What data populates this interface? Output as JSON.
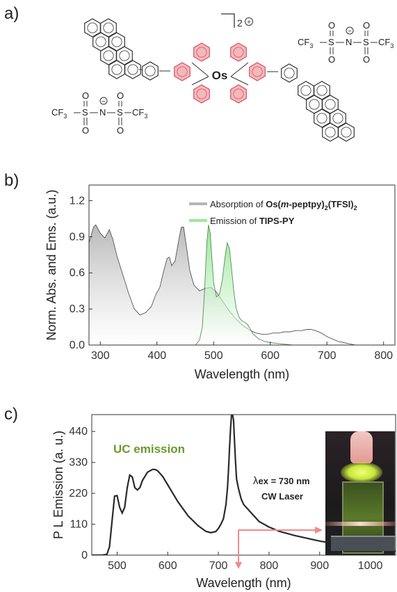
{
  "panels": {
    "a": "a)",
    "b": "b)",
    "c": "c)"
  },
  "structure": {
    "charge": "2",
    "charge_symbol": "+",
    "metal": "Os",
    "anion_left": {
      "cf3_left_main": "CF",
      "cf3_left_sub": "3",
      "s1": "S",
      "n": "N",
      "s2": "S",
      "cf3_right_main": "CF",
      "cf3_right_sub": "3",
      "minus": "−"
    },
    "anion_right": {
      "cf3_left_main": "CF",
      "cf3_left_sub": "3",
      "s1": "S",
      "n": "N",
      "s2": "S",
      "cf3_right_main": "CF",
      "cf3_right_sub": "3",
      "minus": "−"
    },
    "oxygen": "O",
    "colors": {
      "bond": "#333333",
      "highlight_ring": "#f4b8bc",
      "highlight_stroke": "#d2565e"
    }
  },
  "chart_data": [
    {
      "type": "area",
      "ylabel": "Norm. Abs. and Ems. (a.u.)",
      "xlabel": "Wavelength (nm)",
      "xlim": [
        280,
        820
      ],
      "ylim": [
        0,
        1.33
      ],
      "xticks": [
        "300",
        "400",
        "500",
        "600",
        "700",
        "800"
      ],
      "yticks": [
        "0.0",
        "0.3",
        "0.6",
        "0.9",
        "1.2"
      ],
      "legend": {
        "position": "top-right",
        "entries": [
          {
            "prefix": "Absorption of ",
            "bold": "Os(",
            "bold_italic": "m",
            "bold2": "-peptpy)",
            "sub": "2",
            "bold3": "(TFSI)",
            "sub2": "2",
            "color": "#b5b5b5"
          },
          {
            "prefix": "Emission of ",
            "bold": "TIPS-PY",
            "color": "#9ee89e"
          }
        ]
      },
      "series": [
        {
          "name": "Absorption of Os(m-peptpy)2(TFSI)2",
          "color": "#b8b8b8",
          "x": [
            280,
            288,
            292,
            300,
            308,
            316,
            322,
            330,
            340,
            350,
            360,
            370,
            380,
            390,
            398,
            405,
            412,
            418,
            422,
            426,
            432,
            438,
            443,
            447,
            452,
            458,
            465,
            475,
            485,
            495,
            505,
            515,
            525,
            535,
            545,
            555,
            565,
            575,
            585,
            595,
            605,
            615,
            625,
            635,
            645,
            655,
            665,
            672,
            680,
            690,
            700,
            710,
            720,
            730,
            740,
            750
          ],
          "values": [
            0.85,
            0.98,
            1.0,
            0.93,
            0.89,
            0.96,
            0.88,
            0.73,
            0.58,
            0.43,
            0.3,
            0.25,
            0.27,
            0.32,
            0.42,
            0.48,
            0.62,
            0.72,
            0.73,
            0.66,
            0.7,
            0.86,
            0.98,
            0.98,
            0.82,
            0.62,
            0.5,
            0.45,
            0.47,
            0.48,
            0.44,
            0.37,
            0.3,
            0.24,
            0.19,
            0.15,
            0.12,
            0.1,
            0.09,
            0.09,
            0.1,
            0.1,
            0.11,
            0.11,
            0.12,
            0.12,
            0.13,
            0.13,
            0.12,
            0.1,
            0.07,
            0.05,
            0.03,
            0.02,
            0.01,
            0.0
          ]
        },
        {
          "name": "Emission of TIPS-PY",
          "color": "#8ee88e",
          "x": [
            468,
            475,
            480,
            484,
            488,
            491,
            494,
            497,
            500,
            505,
            510,
            515,
            520,
            524,
            528,
            532,
            536,
            540,
            545,
            550,
            555,
            560,
            565,
            570,
            580,
            590,
            600,
            620,
            640,
            660
          ],
          "values": [
            0.0,
            0.04,
            0.15,
            0.45,
            0.85,
            1.0,
            0.93,
            0.72,
            0.52,
            0.4,
            0.42,
            0.53,
            0.73,
            0.85,
            0.8,
            0.62,
            0.43,
            0.3,
            0.23,
            0.2,
            0.19,
            0.17,
            0.13,
            0.09,
            0.05,
            0.03,
            0.02,
            0.01,
            0.0,
            0.0
          ]
        }
      ]
    },
    {
      "type": "line",
      "ylabel": "P L Emission (a. u.)",
      "xlabel": "Wavelength (nm)",
      "xlim": [
        450,
        1050
      ],
      "ylim": [
        0,
        500
      ],
      "xticks": [
        "500",
        "600",
        "700",
        "800",
        "900",
        "1000"
      ],
      "yticks": [
        "0",
        "110",
        "220",
        "330",
        "440"
      ],
      "annotations": {
        "uc": "UC emission",
        "lambda": "λ",
        "ex": "ex = 730 nm",
        "laser": "CW Laser"
      },
      "series": [
        {
          "color": "#2a2a2a",
          "x": [
            450,
            470,
            480,
            485,
            490,
            495,
            500,
            505,
            510,
            515,
            520,
            525,
            530,
            535,
            540,
            545,
            550,
            560,
            570,
            575,
            580,
            590,
            600,
            620,
            640,
            660,
            675,
            685,
            695,
            700,
            705,
            710,
            715,
            718,
            720,
            722,
            724,
            726,
            728,
            730,
            732,
            734,
            736,
            740,
            745,
            750,
            755,
            760,
            770,
            780,
            800,
            820,
            850,
            880,
            900,
            950,
            1000,
            1050
          ],
          "values": [
            0,
            0,
            3,
            30,
            120,
            210,
            212,
            170,
            150,
            170,
            240,
            285,
            278,
            240,
            232,
            240,
            265,
            295,
            305,
            305,
            300,
            280,
            250,
            190,
            140,
            105,
            85,
            80,
            84,
            95,
            110,
            130,
            180,
            240,
            300,
            380,
            450,
            510,
            510,
            480,
            400,
            330,
            270,
            235,
            200,
            180,
            170,
            160,
            140,
            120,
            100,
            85,
            70,
            58,
            50,
            35,
            22,
            15
          ]
        }
      ]
    }
  ]
}
